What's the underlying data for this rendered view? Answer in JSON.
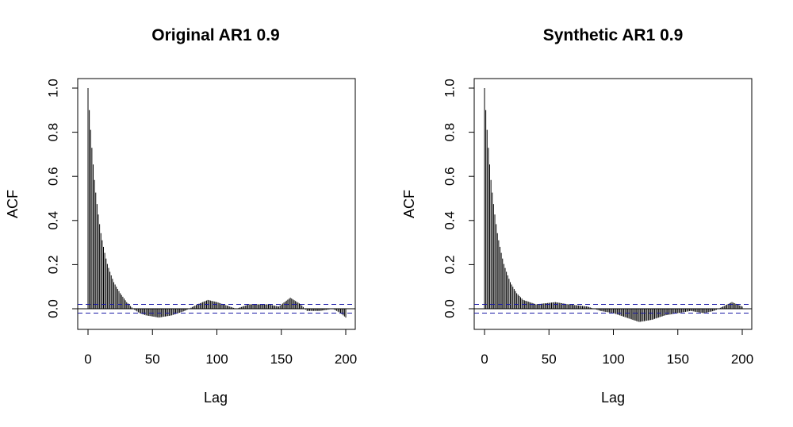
{
  "chart_data": [
    {
      "type": "bar",
      "title": "Original AR1 0.9",
      "xlabel": "Lag",
      "ylabel": "ACF",
      "xlim": [
        0,
        200
      ],
      "ylim": [
        -0.09,
        1.05
      ],
      "xticks": [
        "0",
        "50",
        "100",
        "150",
        "200"
      ],
      "yticks": [
        "0.0",
        "0.2",
        "0.4",
        "0.6",
        "0.8",
        "1.0"
      ],
      "confidence_bound": 0.02,
      "lags": [
        0,
        200
      ],
      "acf_curve": [
        {
          "lag": 0,
          "acf": 1.0
        },
        {
          "lag": 5,
          "acf": 0.55
        },
        {
          "lag": 10,
          "acf": 0.33
        },
        {
          "lag": 15,
          "acf": 0.2
        },
        {
          "lag": 20,
          "acf": 0.12
        },
        {
          "lag": 25,
          "acf": 0.07
        },
        {
          "lag": 30,
          "acf": 0.03
        },
        {
          "lag": 35,
          "acf": 0.0
        },
        {
          "lag": 40,
          "acf": -0.02
        },
        {
          "lag": 45,
          "acf": -0.03
        },
        {
          "lag": 55,
          "acf": -0.04
        },
        {
          "lag": 65,
          "acf": -0.03
        },
        {
          "lag": 75,
          "acf": -0.01
        },
        {
          "lag": 85,
          "acf": 0.02
        },
        {
          "lag": 93,
          "acf": 0.04
        },
        {
          "lag": 100,
          "acf": 0.03
        },
        {
          "lag": 110,
          "acf": 0.01
        },
        {
          "lag": 115,
          "acf": 0.0
        },
        {
          "lag": 125,
          "acf": 0.02
        },
        {
          "lag": 140,
          "acf": 0.02
        },
        {
          "lag": 148,
          "acf": 0.01
        },
        {
          "lag": 157,
          "acf": 0.05
        },
        {
          "lag": 165,
          "acf": 0.02
        },
        {
          "lag": 170,
          "acf": -0.01
        },
        {
          "lag": 180,
          "acf": -0.01
        },
        {
          "lag": 190,
          "acf": 0.0
        },
        {
          "lag": 196,
          "acf": -0.02
        },
        {
          "lag": 200,
          "acf": -0.04
        }
      ]
    },
    {
      "type": "bar",
      "title": "Synthetic AR1 0.9",
      "xlabel": "Lag",
      "ylabel": "ACF",
      "xlim": [
        0,
        200
      ],
      "ylim": [
        -0.09,
        1.05
      ],
      "xticks": [
        "0",
        "50",
        "100",
        "150",
        "200"
      ],
      "yticks": [
        "0.0",
        "0.2",
        "0.4",
        "0.6",
        "0.8",
        "1.0"
      ],
      "confidence_bound": 0.02,
      "lags": [
        0,
        200
      ],
      "acf_curve": [
        {
          "lag": 0,
          "acf": 1.0
        },
        {
          "lag": 5,
          "acf": 0.55
        },
        {
          "lag": 10,
          "acf": 0.33
        },
        {
          "lag": 15,
          "acf": 0.2
        },
        {
          "lag": 20,
          "acf": 0.12
        },
        {
          "lag": 25,
          "acf": 0.07
        },
        {
          "lag": 30,
          "acf": 0.04
        },
        {
          "lag": 40,
          "acf": 0.02
        },
        {
          "lag": 55,
          "acf": 0.03
        },
        {
          "lag": 65,
          "acf": 0.02
        },
        {
          "lag": 80,
          "acf": 0.01
        },
        {
          "lag": 90,
          "acf": -0.01
        },
        {
          "lag": 100,
          "acf": -0.02
        },
        {
          "lag": 110,
          "acf": -0.04
        },
        {
          "lag": 120,
          "acf": -0.06
        },
        {
          "lag": 130,
          "acf": -0.05
        },
        {
          "lag": 140,
          "acf": -0.03
        },
        {
          "lag": 150,
          "acf": -0.02
        },
        {
          "lag": 160,
          "acf": -0.01
        },
        {
          "lag": 170,
          "acf": -0.02
        },
        {
          "lag": 178,
          "acf": -0.01
        },
        {
          "lag": 185,
          "acf": 0.01
        },
        {
          "lag": 192,
          "acf": 0.03
        },
        {
          "lag": 196,
          "acf": 0.02
        },
        {
          "lag": 200,
          "acf": 0.01
        }
      ]
    }
  ],
  "colors": {
    "bars": "#000000",
    "confidence": "#1a1aa6",
    "frame": "#000000",
    "background": "#ffffff"
  }
}
